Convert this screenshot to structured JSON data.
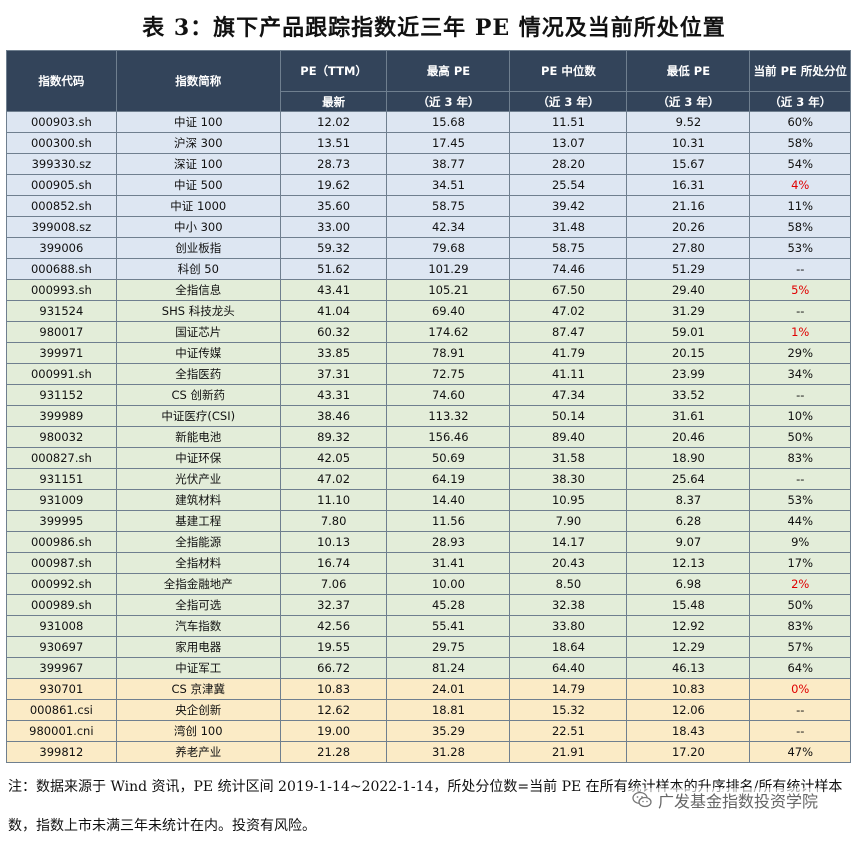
{
  "title": "表 3：旗下产品跟踪指数近三年 PE 情况及当前所处位置",
  "table": {
    "headers": {
      "code": "指数代码",
      "name": "指数简称",
      "pe_top": "PE（TTM）",
      "pe_sub": "最新",
      "high_top": "最高 PE",
      "high_sub": "（近 3 年）",
      "median_top": "PE 中位数",
      "median_sub": "（近 3 年）",
      "low_top": "最低 PE",
      "low_sub": "（近 3 年）",
      "pct_top": "当前 PE 所处分位",
      "pct_sub": "（近 3 年）"
    },
    "rows": [
      {
        "code": "000903.sh",
        "name": "中证 100",
        "pe": "12.02",
        "high": "15.68",
        "median": "11.51",
        "low": "9.52",
        "pct": "60%",
        "group": "blue",
        "red": false
      },
      {
        "code": "000300.sh",
        "name": "沪深 300",
        "pe": "13.51",
        "high": "17.45",
        "median": "13.07",
        "low": "10.31",
        "pct": "58%",
        "group": "blue",
        "red": false
      },
      {
        "code": "399330.sz",
        "name": "深证 100",
        "pe": "28.73",
        "high": "38.77",
        "median": "28.20",
        "low": "15.67",
        "pct": "54%",
        "group": "blue",
        "red": false
      },
      {
        "code": "000905.sh",
        "name": "中证 500",
        "pe": "19.62",
        "high": "34.51",
        "median": "25.54",
        "low": "16.31",
        "pct": "4%",
        "group": "blue",
        "red": true
      },
      {
        "code": "000852.sh",
        "name": "中证 1000",
        "pe": "35.60",
        "high": "58.75",
        "median": "39.42",
        "low": "21.16",
        "pct": "11%",
        "group": "blue",
        "red": false
      },
      {
        "code": "399008.sz",
        "name": "中小 300",
        "pe": "33.00",
        "high": "42.34",
        "median": "31.48",
        "low": "20.26",
        "pct": "58%",
        "group": "blue",
        "red": false
      },
      {
        "code": "399006",
        "name": "创业板指",
        "pe": "59.32",
        "high": "79.68",
        "median": "58.75",
        "low": "27.80",
        "pct": "53%",
        "group": "blue",
        "red": false
      },
      {
        "code": "000688.sh",
        "name": "科创 50",
        "pe": "51.62",
        "high": "101.29",
        "median": "74.46",
        "low": "51.29",
        "pct": "--",
        "group": "blue",
        "red": false
      },
      {
        "code": "000993.sh",
        "name": "全指信息",
        "pe": "43.41",
        "high": "105.21",
        "median": "67.50",
        "low": "29.40",
        "pct": "5%",
        "group": "green",
        "red": true
      },
      {
        "code": "931524",
        "name": "SHS 科技龙头",
        "pe": "41.04",
        "high": "69.40",
        "median": "47.02",
        "low": "31.29",
        "pct": "--",
        "group": "green",
        "red": false
      },
      {
        "code": "980017",
        "name": "国证芯片",
        "pe": "60.32",
        "high": "174.62",
        "median": "87.47",
        "low": "59.01",
        "pct": "1%",
        "group": "green",
        "red": true
      },
      {
        "code": "399971",
        "name": "中证传媒",
        "pe": "33.85",
        "high": "78.91",
        "median": "41.79",
        "low": "20.15",
        "pct": "29%",
        "group": "green",
        "red": false
      },
      {
        "code": "000991.sh",
        "name": "全指医药",
        "pe": "37.31",
        "high": "72.75",
        "median": "41.11",
        "low": "23.99",
        "pct": "34%",
        "group": "green",
        "red": false
      },
      {
        "code": "931152",
        "name": "CS 创新药",
        "pe": "43.31",
        "high": "74.60",
        "median": "47.34",
        "low": "33.52",
        "pct": "--",
        "group": "green",
        "red": false
      },
      {
        "code": "399989",
        "name": "中证医疗(CSI)",
        "pe": "38.46",
        "high": "113.32",
        "median": "50.14",
        "low": "31.61",
        "pct": "10%",
        "group": "green",
        "red": false
      },
      {
        "code": "980032",
        "name": "新能电池",
        "pe": "89.32",
        "high": "156.46",
        "median": "89.40",
        "low": "20.46",
        "pct": "50%",
        "group": "green",
        "red": false
      },
      {
        "code": "000827.sh",
        "name": "中证环保",
        "pe": "42.05",
        "high": "50.69",
        "median": "31.58",
        "low": "18.90",
        "pct": "83%",
        "group": "green",
        "red": false
      },
      {
        "code": "931151",
        "name": "光伏产业",
        "pe": "47.02",
        "high": "64.19",
        "median": "38.30",
        "low": "25.64",
        "pct": "--",
        "group": "green",
        "red": false
      },
      {
        "code": "931009",
        "name": "建筑材料",
        "pe": "11.10",
        "high": "14.40",
        "median": "10.95",
        "low": "8.37",
        "pct": "53%",
        "group": "green",
        "red": false
      },
      {
        "code": "399995",
        "name": "基建工程",
        "pe": "7.80",
        "high": "11.56",
        "median": "7.90",
        "low": "6.28",
        "pct": "44%",
        "group": "green",
        "red": false
      },
      {
        "code": "000986.sh",
        "name": "全指能源",
        "pe": "10.13",
        "high": "28.93",
        "median": "14.17",
        "low": "9.07",
        "pct": "9%",
        "group": "green",
        "red": false
      },
      {
        "code": "000987.sh",
        "name": "全指材料",
        "pe": "16.74",
        "high": "31.41",
        "median": "20.43",
        "low": "12.13",
        "pct": "17%",
        "group": "green",
        "red": false
      },
      {
        "code": "000992.sh",
        "name": "全指金融地产",
        "pe": "7.06",
        "high": "10.00",
        "median": "8.50",
        "low": "6.98",
        "pct": "2%",
        "group": "green",
        "red": true
      },
      {
        "code": "000989.sh",
        "name": "全指可选",
        "pe": "32.37",
        "high": "45.28",
        "median": "32.38",
        "low": "15.48",
        "pct": "50%",
        "group": "green",
        "red": false
      },
      {
        "code": "931008",
        "name": "汽车指数",
        "pe": "42.56",
        "high": "55.41",
        "median": "33.80",
        "low": "12.92",
        "pct": "83%",
        "group": "green",
        "red": false
      },
      {
        "code": "930697",
        "name": "家用电器",
        "pe": "19.55",
        "high": "29.75",
        "median": "18.64",
        "low": "12.29",
        "pct": "57%",
        "group": "green",
        "red": false
      },
      {
        "code": "399967",
        "name": "中证军工",
        "pe": "66.72",
        "high": "81.24",
        "median": "64.40",
        "low": "46.13",
        "pct": "64%",
        "group": "green",
        "red": false
      },
      {
        "code": "930701",
        "name": "CS 京津冀",
        "pe": "10.83",
        "high": "24.01",
        "median": "14.79",
        "low": "10.83",
        "pct": "0%",
        "group": "yellow",
        "red": true
      },
      {
        "code": "000861.csi",
        "name": "央企创新",
        "pe": "12.62",
        "high": "18.81",
        "median": "15.32",
        "low": "12.06",
        "pct": "--",
        "group": "yellow",
        "red": false
      },
      {
        "code": "980001.cni",
        "name": "湾创 100",
        "pe": "19.00",
        "high": "35.29",
        "median": "22.51",
        "low": "18.43",
        "pct": "--",
        "group": "yellow",
        "red": false
      },
      {
        "code": "399812",
        "name": "养老产业",
        "pe": "21.28",
        "high": "31.28",
        "median": "21.91",
        "low": "17.20",
        "pct": "47%",
        "group": "yellow",
        "red": false
      }
    ]
  },
  "note": "注：数据来源于 Wind 资讯，PE 统计区间 2019-1-14~2022-1-14，所处分位数=当前 PE 在所有统计样本的升序排名/所有统计样本数，指数上市未满三年未统计在内。投资有风险。",
  "watermark": "广发基金指数投资学院",
  "colors": {
    "header_bg": "#33445a",
    "group_blue": "#dde6f2",
    "group_green": "#e3edd9",
    "group_yellow": "#fbebc6",
    "highlight_red": "#e00000"
  }
}
